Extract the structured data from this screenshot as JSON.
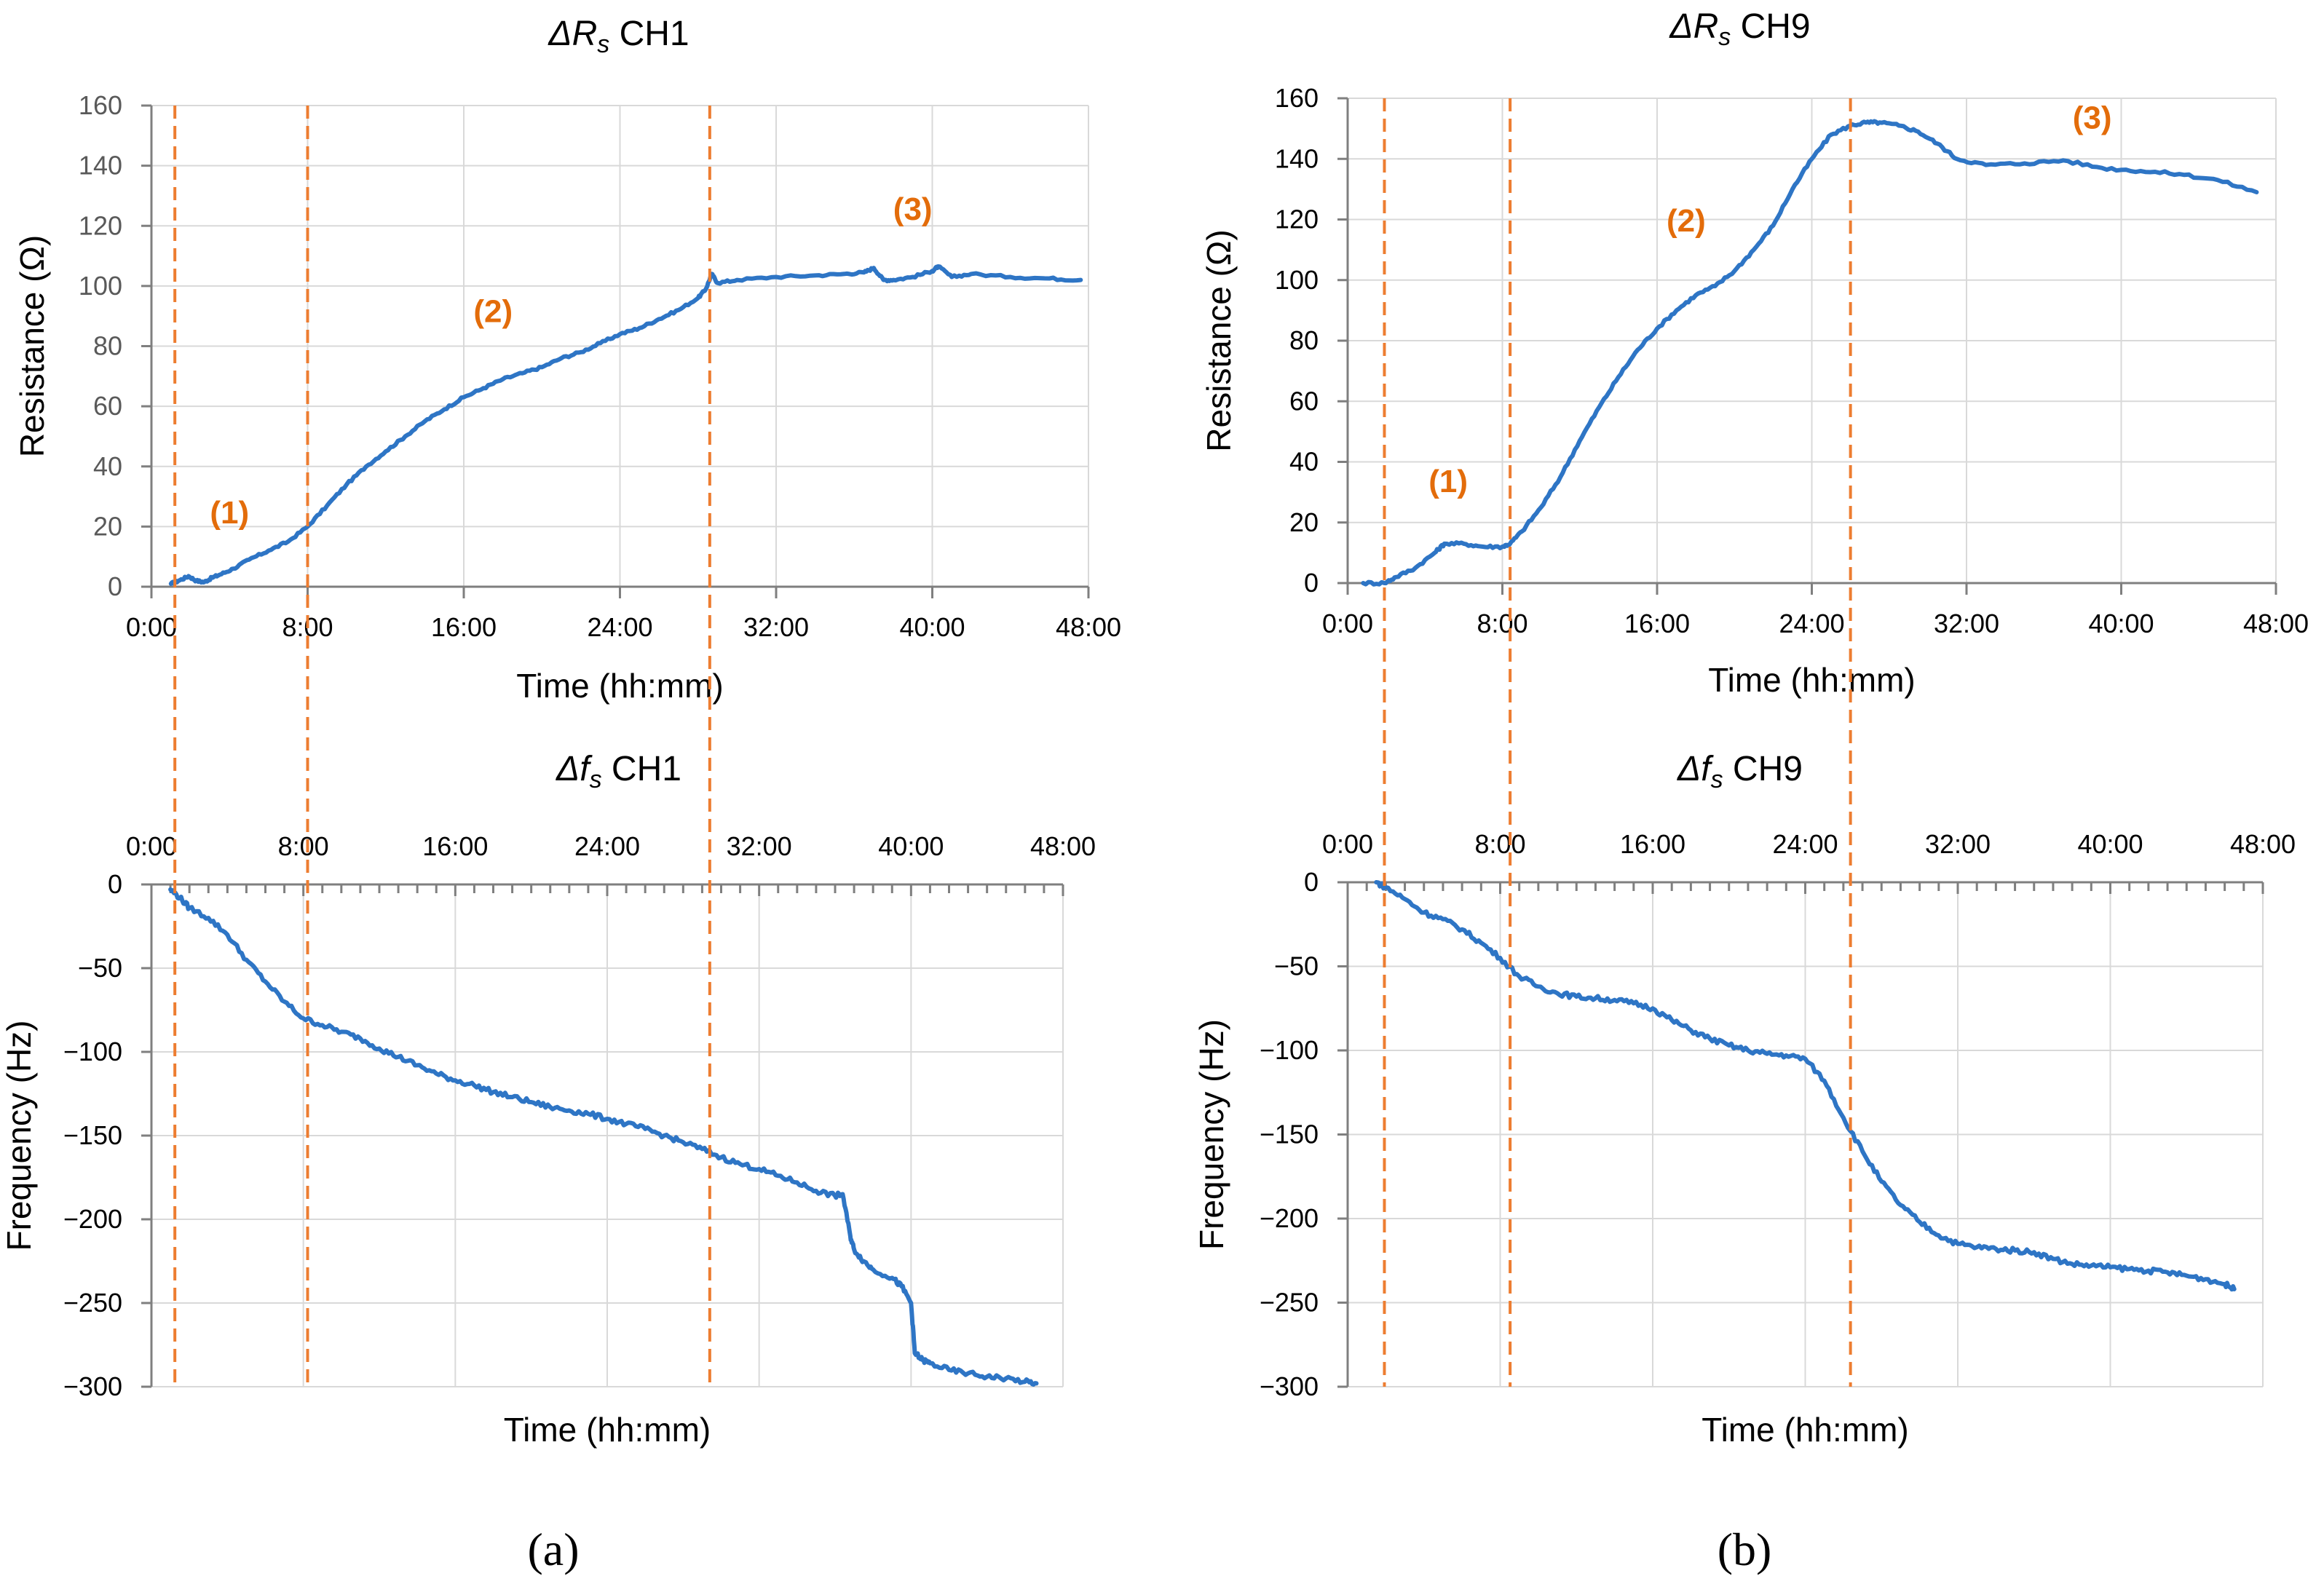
{
  "figure": {
    "panel_labels": [
      "(a)",
      "(b)"
    ]
  },
  "colors": {
    "series": "#2E75C5",
    "marker_line": "#ED7D31",
    "annotation": "#E36C0A",
    "grid": "#D9D9D9",
    "axis": "#7F7F7F"
  },
  "chart_data": [
    {
      "id": "rs_ch1",
      "type": "line",
      "title_symbol": "ΔR",
      "title_sub": "s",
      "title_suffix": " CH1",
      "xlabel": "Time (hh:mm)",
      "ylabel": "Resistance (Ω)",
      "xlim": [
        0,
        48
      ],
      "ylim": [
        0,
        160
      ],
      "x_ticks": [
        "0:00",
        "8:00",
        "16:00",
        "24:00",
        "32:00",
        "40:00",
        "48:00"
      ],
      "y_ticks": [
        "0",
        "20",
        "40",
        "60",
        "80",
        "100",
        "120",
        "140",
        "160"
      ],
      "y_tick_values": [
        0,
        20,
        40,
        60,
        80,
        100,
        120,
        140,
        160
      ],
      "vlines": [
        1.2,
        8.0,
        28.6
      ],
      "annotations": [
        {
          "text": "(1)",
          "x": 4.0,
          "y": 21
        },
        {
          "text": "(2)",
          "x": 17.5,
          "y": 88
        },
        {
          "text": "(3)",
          "x": 39.0,
          "y": 122
        }
      ],
      "series": [
        {
          "name": "ΔRs CH1",
          "x": [
            1.0,
            1.4,
            1.9,
            2.3,
            2.7,
            3.1,
            3.5,
            4.2,
            5.0,
            6.0,
            7.0,
            8.0,
            9.0,
            10.0,
            11.0,
            12.0,
            13.0,
            14.0,
            15.0,
            16.0,
            17.0,
            18.0,
            19.0,
            20.0,
            21.0,
            22.0,
            23.0,
            24.0,
            25.0,
            26.0,
            27.0,
            28.0,
            28.4,
            28.7,
            29.0,
            30.0,
            32.0,
            34.0,
            35.5,
            36.5,
            37.0,
            37.5,
            38.0,
            39.0,
            40.0,
            40.3,
            41.0,
            42.0,
            44.0,
            46.0,
            47.6
          ],
          "y": [
            1,
            2,
            3.5,
            2,
            1.5,
            3,
            4,
            6,
            9,
            12,
            15,
            20,
            27,
            34,
            40,
            45,
            50,
            55,
            59,
            63,
            66,
            69,
            71,
            73,
            76,
            78,
            81,
            84,
            86,
            89,
            92,
            96,
            99,
            104,
            101,
            102,
            103,
            103.5,
            104,
            104.5,
            106,
            102,
            102,
            103,
            105,
            106.5,
            103,
            104,
            103,
            102.5,
            102
          ],
          "noise": 0.4
        }
      ]
    },
    {
      "id": "rs_ch9",
      "type": "line",
      "title_symbol": "ΔR",
      "title_sub": "s",
      "title_suffix": " CH9",
      "xlabel": "Time (hh:mm)",
      "ylabel": "Resistance (Ω)",
      "xlim": [
        0,
        48
      ],
      "ylim": [
        0,
        160
      ],
      "x_ticks": [
        "0:00",
        "8:00",
        "16:00",
        "24:00",
        "32:00",
        "40:00",
        "48:00"
      ],
      "y_ticks": [
        "0",
        "20",
        "40",
        "60",
        "80",
        "100",
        "120",
        "140",
        "160"
      ],
      "y_tick_values": [
        0,
        20,
        40,
        60,
        80,
        100,
        120,
        140,
        160
      ],
      "vlines": [
        1.9,
        8.4,
        26.0
      ],
      "annotations": [
        {
          "text": "(1)",
          "x": 5.2,
          "y": 30
        },
        {
          "text": "(2)",
          "x": 17.5,
          "y": 116
        },
        {
          "text": "(3)",
          "x": 38.5,
          "y": 150
        }
      ],
      "series": [
        {
          "name": "ΔRs CH9",
          "x": [
            0.8,
            1.9,
            2.5,
            3.5,
            4.5,
            5.0,
            6.0,
            7.0,
            8.0,
            8.4,
            9.0,
            10.0,
            11.0,
            12.0,
            13.0,
            14.0,
            15.0,
            16.0,
            17.0,
            18.0,
            19.0,
            20.0,
            21.0,
            22.0,
            23.0,
            24.0,
            25.0,
            26.0,
            26.8,
            27.5,
            28.5,
            29.5,
            30.5,
            31.5,
            33.0,
            35.0,
            37.0,
            39.0,
            41.0,
            43.0,
            45.0,
            47.0
          ],
          "y": [
            0,
            0,
            2,
            5,
            10,
            13,
            13,
            12,
            12,
            13,
            17,
            25,
            35,
            47,
            58,
            68,
            77,
            84,
            90,
            95,
            98,
            103,
            110,
            118,
            130,
            140,
            148,
            151,
            152,
            152,
            151,
            149,
            145,
            140,
            138,
            138.5,
            139.5,
            137,
            136,
            135,
            133,
            129
          ],
          "noise": 0.5
        }
      ]
    },
    {
      "id": "fs_ch1",
      "type": "line",
      "title_symbol": "Δf",
      "title_sub": "s",
      "title_suffix": " CH1",
      "xlabel": "Time (hh:mm)",
      "ylabel": "Frequency (Hz)",
      "xlim": [
        0,
        48
      ],
      "ylim": [
        -300,
        0
      ],
      "x_ticks": [
        "0:00",
        "8:00",
        "16:00",
        "24:00",
        "32:00",
        "40:00",
        "48:00"
      ],
      "y_ticks": [
        "0",
        "-50",
        "-100",
        "-150",
        "-200",
        "-250",
        "-300"
      ],
      "y_tick_values": [
        0,
        -50,
        -100,
        -150,
        -200,
        -250,
        -300
      ],
      "vlines": [
        1.2,
        8.0,
        28.6
      ],
      "annotations": [],
      "series": [
        {
          "name": "Δfs CH1",
          "x": [
            1.0,
            1.5,
            2.0,
            3.0,
            4.0,
            5.0,
            6.0,
            7.0,
            8.0,
            9.0,
            10.0,
            11.0,
            12.0,
            13.0,
            14.0,
            15.0,
            16.0,
            17.0,
            18.0,
            19.0,
            20.0,
            21.0,
            22.0,
            23.0,
            24.0,
            25.0,
            26.0,
            27.0,
            28.0,
            29.0,
            30.0,
            31.0,
            32.0,
            33.0,
            34.0,
            35.0,
            36.0,
            36.4,
            36.8,
            37.0,
            37.5,
            38.0,
            39.0,
            39.5,
            40.0,
            40.2,
            40.6,
            41.0,
            42.0,
            43.0,
            44.0,
            45.0,
            46.0,
            46.6
          ],
          "y": [
            -3,
            -8,
            -14,
            -20,
            -30,
            -45,
            -58,
            -70,
            -80,
            -84,
            -88,
            -92,
            -98,
            -103,
            -108,
            -113,
            -117,
            -120,
            -124,
            -127,
            -130,
            -133,
            -135,
            -137,
            -140,
            -143,
            -146,
            -150,
            -154,
            -158,
            -163,
            -167,
            -170,
            -174,
            -178,
            -183,
            -186,
            -185,
            -210,
            -218,
            -225,
            -230,
            -235,
            -240,
            -250,
            -280,
            -284,
            -286,
            -290,
            -292,
            -294,
            -295,
            -297,
            -298
          ],
          "noise": 1.5
        }
      ]
    },
    {
      "id": "fs_ch9",
      "type": "line",
      "title_symbol": "Δf",
      "title_sub": "s",
      "title_suffix": " CH9",
      "xlabel": "Time (hh:mm)",
      "ylabel": "Frequency (Hz)",
      "xlim": [
        0,
        48
      ],
      "ylim": [
        -300,
        0
      ],
      "x_ticks": [
        "0:00",
        "8:00",
        "16:00",
        "24:00",
        "32:00",
        "40:00",
        "48:00"
      ],
      "y_ticks": [
        "0",
        "-50",
        "-100",
        "-150",
        "-200",
        "-250",
        "-300"
      ],
      "y_tick_values": [
        0,
        -50,
        -100,
        -150,
        -200,
        -250,
        -300
      ],
      "vlines": [
        1.9,
        8.4,
        26.0
      ],
      "annotations": [],
      "series": [
        {
          "name": "Δfs CH9",
          "x": [
            1.5,
            2.0,
            3.0,
            4.0,
            5.0,
            6.0,
            7.0,
            8.0,
            9.0,
            10.0,
            11.0,
            12.0,
            13.0,
            14.0,
            15.0,
            16.0,
            17.0,
            18.0,
            19.0,
            20.0,
            21.0,
            22.0,
            23.0,
            24.0,
            25.0,
            26.0,
            27.0,
            28.0,
            29.0,
            30.0,
            31.0,
            32.0,
            33.0,
            34.0,
            35.0,
            36.0,
            37.0,
            38.0,
            39.0,
            40.0,
            41.0,
            42.0,
            43.0,
            44.0,
            45.0,
            46.0,
            46.5
          ],
          "y": [
            0,
            -3,
            -10,
            -18,
            -22,
            -28,
            -36,
            -45,
            -56,
            -62,
            -66,
            -68,
            -69,
            -70,
            -72,
            -75,
            -82,
            -88,
            -93,
            -97,
            -100,
            -102,
            -103,
            -105,
            -118,
            -140,
            -160,
            -178,
            -192,
            -202,
            -210,
            -215,
            -217,
            -218,
            -219,
            -220,
            -224,
            -227,
            -228,
            -229,
            -230,
            -231,
            -232,
            -234,
            -236,
            -239,
            -242
          ],
          "noise": 1.5
        }
      ]
    }
  ]
}
